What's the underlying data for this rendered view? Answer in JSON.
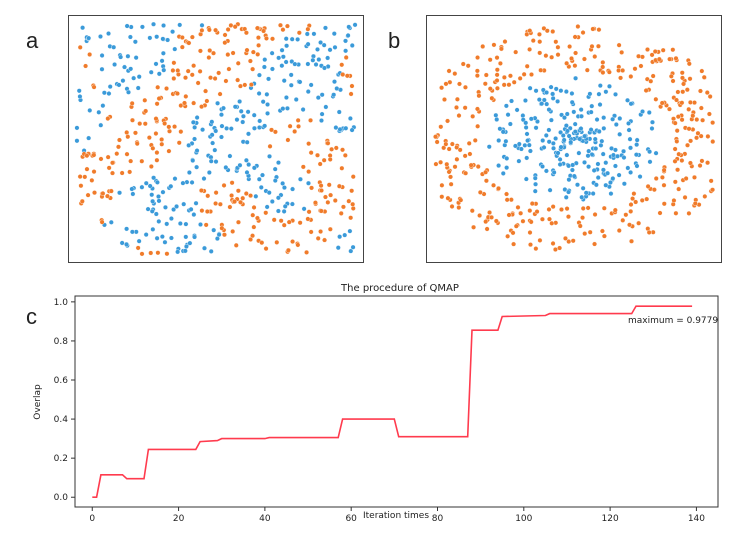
{
  "panels": {
    "a": "a",
    "b": "b",
    "c": "c"
  },
  "colors": {
    "blue": "#3a9ad9",
    "orange": "#f07b2a",
    "line": "#ff3b4e"
  },
  "chart_data": [
    {
      "type": "scatter",
      "panel": "a",
      "title": "",
      "description": "grid-like mixed clusters",
      "series": [
        {
          "name": "class-blue",
          "color": "#3a9ad9"
        },
        {
          "name": "class-orange",
          "color": "#f07b2a"
        }
      ]
    },
    {
      "type": "scatter",
      "panel": "b",
      "title": "",
      "description": "blue central cluster surrounded by orange ring",
      "series": [
        {
          "name": "class-blue",
          "color": "#3a9ad9"
        },
        {
          "name": "class-orange",
          "color": "#f07b2a"
        }
      ]
    },
    {
      "type": "line",
      "panel": "c",
      "title": "The procedure of QMAP",
      "xlabel": "Iteration times",
      "ylabel": "Overlap",
      "xlim": [
        -4,
        145
      ],
      "ylim": [
        -0.05,
        1.03
      ],
      "xticks": [
        0,
        20,
        40,
        60,
        80,
        100,
        120,
        140
      ],
      "yticks": [
        0.0,
        0.2,
        0.4,
        0.6,
        0.8,
        1.0
      ],
      "annotation": "maximum = 0.9779",
      "series": [
        {
          "name": "overlap",
          "x": [
            0,
            1,
            2,
            7,
            8,
            12,
            13,
            24,
            25,
            29,
            30,
            40,
            41,
            57,
            58,
            70,
            71,
            87,
            88,
            94,
            95,
            105,
            106,
            125,
            126,
            139
          ],
          "y": [
            0.0,
            0.0,
            0.115,
            0.115,
            0.095,
            0.095,
            0.245,
            0.245,
            0.285,
            0.29,
            0.3,
            0.3,
            0.305,
            0.305,
            0.4,
            0.4,
            0.31,
            0.31,
            0.855,
            0.855,
            0.925,
            0.93,
            0.94,
            0.94,
            0.9779,
            0.9779
          ]
        }
      ]
    }
  ]
}
